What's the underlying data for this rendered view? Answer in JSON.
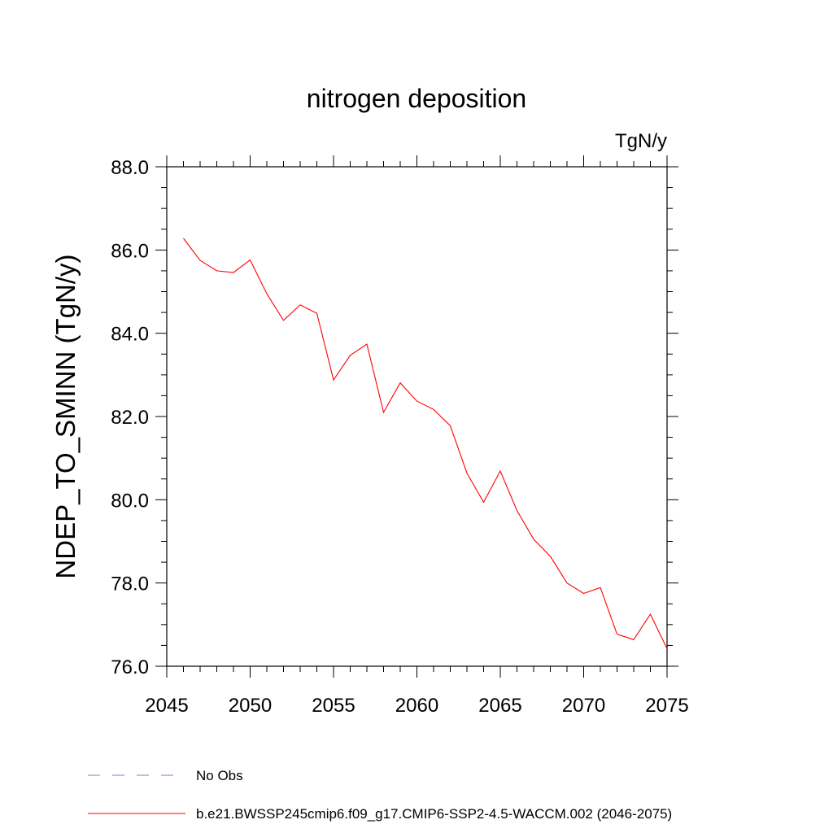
{
  "chart_data": {
    "type": "line",
    "title": "nitrogen deposition",
    "units": "TgN/y",
    "ylabel": "NDEP_TO_SMINN  (TgN/y)",
    "xlabel": "",
    "xlim": [
      2045,
      2075
    ],
    "ylim": [
      76.0,
      88.0
    ],
    "x_ticks": [
      "2045",
      "2050",
      "2055",
      "2060",
      "2065",
      "2070",
      "2075"
    ],
    "y_ticks": [
      "76.0",
      "78.0",
      "80.0",
      "82.0",
      "84.0",
      "86.0",
      "88.0"
    ],
    "legend_placement": "bottom",
    "series": [
      {
        "name": "b.e21.BWSSP245cmip6.f09_g17.CMIP6-SSP2-4.5-WACCM.002 (2046-2075)",
        "color": "#ff0000",
        "x": [
          2046,
          2047,
          2048,
          2049,
          2050,
          2051,
          2052,
          2053,
          2054,
          2055,
          2056,
          2057,
          2058,
          2059,
          2060,
          2061,
          2062,
          2063,
          2064,
          2065,
          2066,
          2067,
          2068,
          2069,
          2070,
          2071,
          2072,
          2073,
          2074,
          2075
        ],
        "values": [
          86.28,
          85.75,
          85.5,
          85.46,
          85.76,
          84.95,
          84.31,
          84.68,
          84.48,
          82.88,
          83.47,
          83.74,
          82.1,
          82.81,
          82.37,
          82.17,
          81.78,
          80.64,
          79.94,
          80.69,
          79.74,
          79.05,
          78.64,
          78.0,
          77.75,
          77.89,
          76.77,
          76.64,
          77.25,
          76.42
        ]
      }
    ],
    "legend": [
      {
        "label": "No Obs",
        "style": "dashed",
        "color": "#7f7fbf"
      },
      {
        "label": "b.e21.BWSSP245cmip6.f09_g17.CMIP6-SSP2-4.5-WACCM.002 (2046-2075)",
        "style": "solid",
        "color": "#ff0000"
      }
    ]
  }
}
